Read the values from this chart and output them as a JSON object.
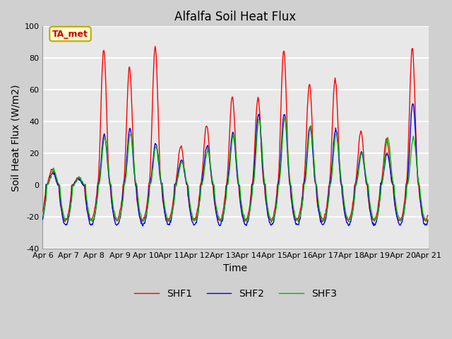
{
  "title": "Alfalfa Soil Heat Flux",
  "xlabel": "Time",
  "ylabel": "Soil Heat Flux (W/m2)",
  "ylim": [
    -40,
    100
  ],
  "series_colors": [
    "#ff0000",
    "#0000ee",
    "#00bb00"
  ],
  "series_names": [
    "SHF1",
    "SHF2",
    "SHF3"
  ],
  "annotation_text": "TA_met",
  "annotation_color": "#cc0000",
  "annotation_bg": "#ffffcc",
  "annotation_edge": "#bbaa00",
  "fig_bg": "#d0d0d0",
  "plot_bg": "#e8e8e8",
  "grid_color": "#ffffff",
  "n_days": 15,
  "tick_labels": [
    "Apr 6",
    "Apr 7",
    "Apr 8",
    "Apr 9",
    "Apr 10",
    "Apr 11",
    "Apr 12",
    "Apr 13",
    "Apr 14",
    "Apr 15",
    "Apr 16",
    "Apr 17",
    "Apr 18",
    "Apr 19",
    "Apr 20",
    "Apr 21"
  ],
  "shf1_day_peaks": [
    10,
    5,
    85,
    74,
    87,
    25,
    38,
    56,
    55,
    85,
    64,
    67,
    34,
    29,
    86
  ],
  "shf2_day_peaks": [
    8,
    4,
    32,
    36,
    26,
    16,
    25,
    33,
    45,
    45,
    37,
    35,
    21,
    20,
    52
  ],
  "shf3_day_peaks": [
    10,
    5,
    30,
    33,
    25,
    15,
    22,
    32,
    42,
    42,
    37,
    33,
    20,
    30,
    30
  ],
  "shf1_trough": -22,
  "shf2_trough": -25,
  "shf3_trough": -22,
  "peak_hour": 13.0,
  "trough_hour": 3.0
}
